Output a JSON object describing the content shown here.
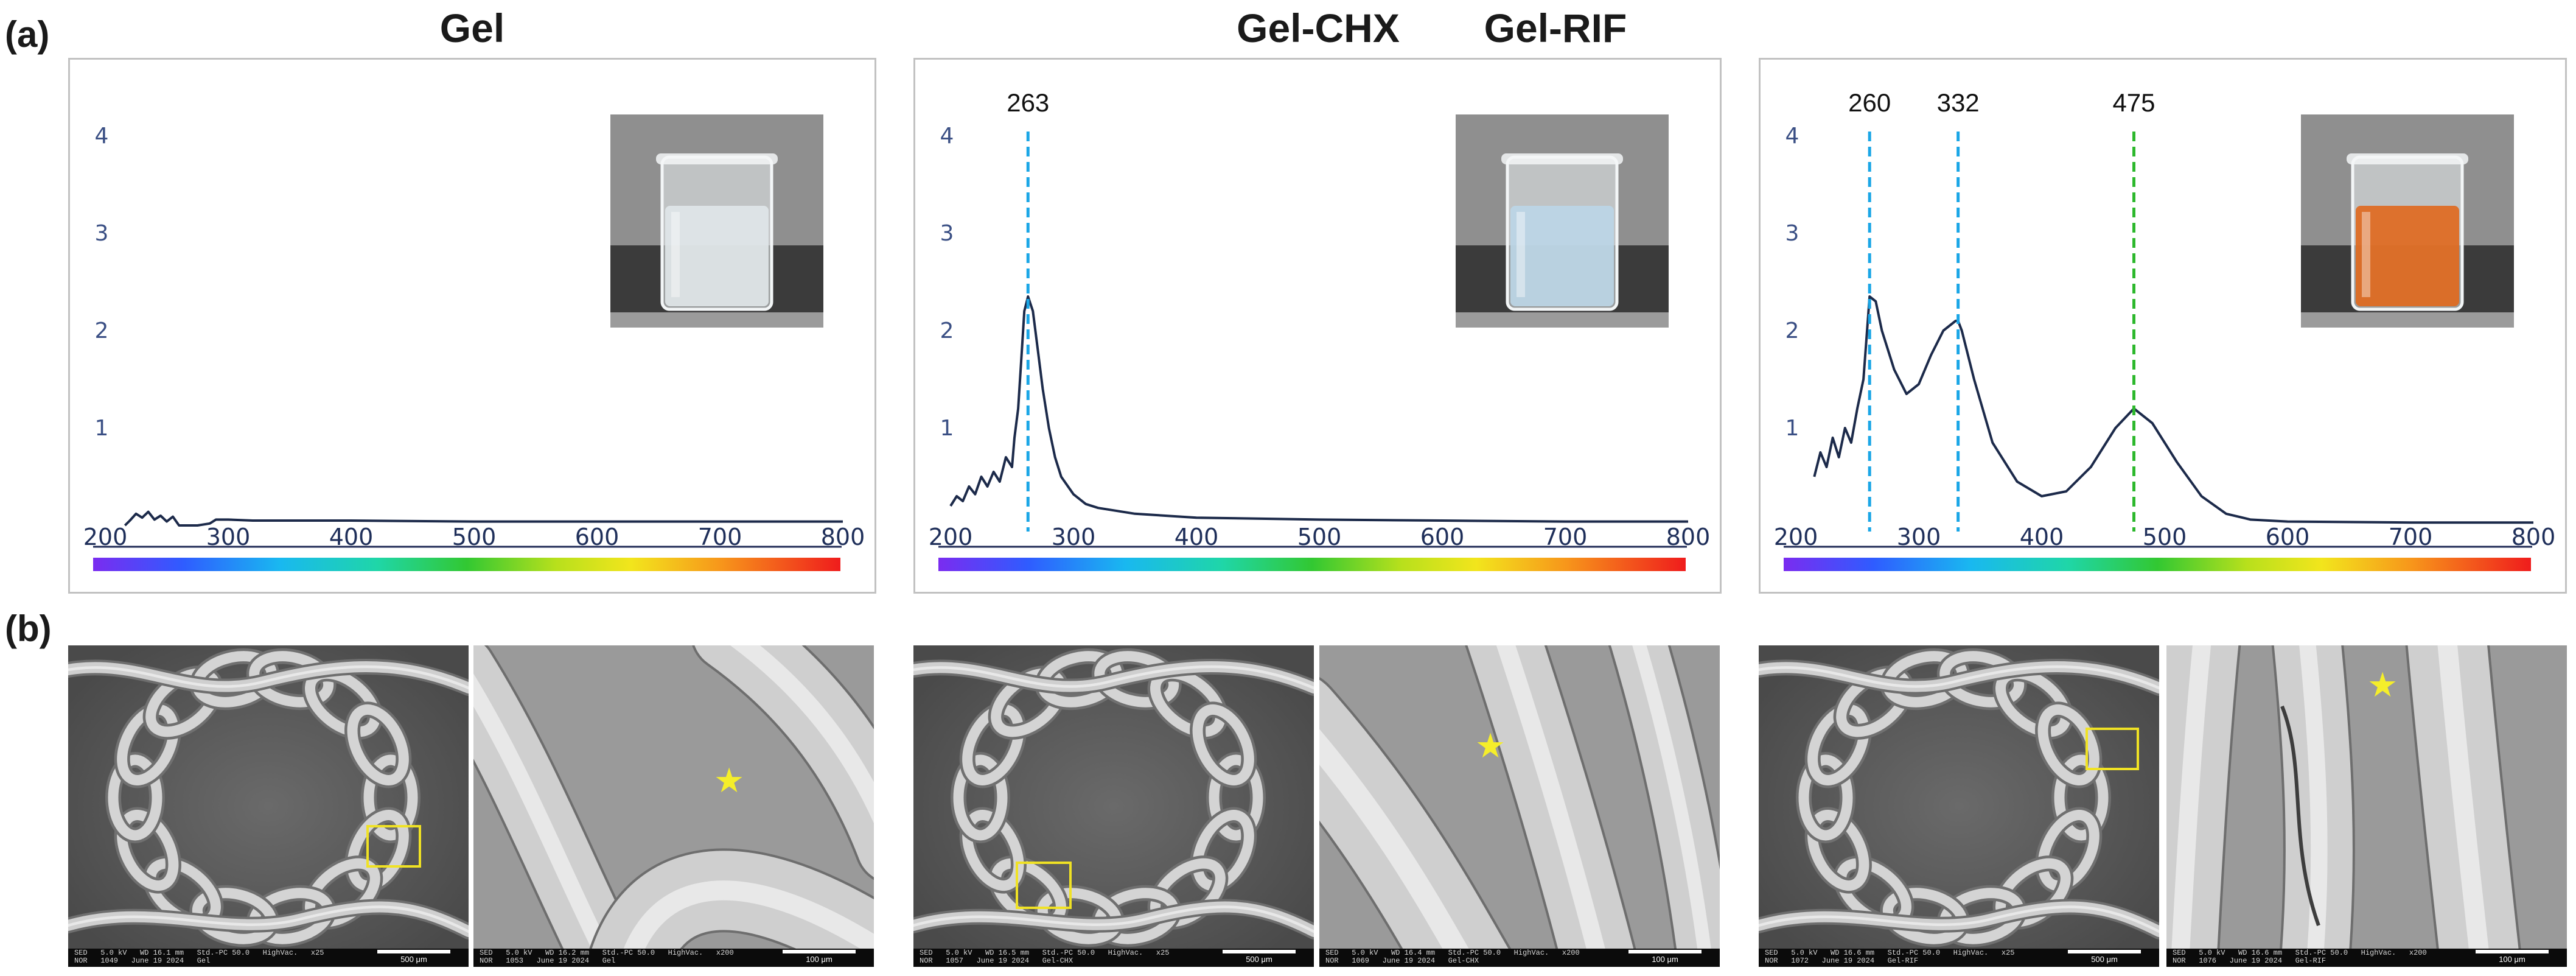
{
  "labels": {
    "a": "(a)",
    "b": "(b)"
  },
  "chart_data": [
    {
      "type": "line",
      "title": "Gel",
      "xlabel": "",
      "ylabel": "",
      "xlim": [
        200,
        800
      ],
      "ylim": [
        0,
        4.5
      ],
      "x_ticks": [
        200,
        300,
        400,
        500,
        600,
        700,
        800
      ],
      "y_ticks": [
        1,
        2,
        3,
        4
      ],
      "series": [
        {
          "x": [
            216,
            220,
            225,
            230,
            235,
            240,
            245,
            250,
            255,
            260,
            265,
            275,
            285,
            290,
            300,
            320,
            350,
            400,
            500,
            600,
            700,
            800
          ],
          "y": [
            0.0,
            0.05,
            0.12,
            0.08,
            0.14,
            0.06,
            0.1,
            0.04,
            0.09,
            0.0,
            0.0,
            0.0,
            0.02,
            0.06,
            0.06,
            0.05,
            0.05,
            0.05,
            0.04,
            0.04,
            0.04,
            0.04
          ]
        }
      ],
      "markers": [],
      "spectrum_bar": true,
      "inset_color": "#e6ecef",
      "liquid_color": "#dfe6e8"
    },
    {
      "type": "line",
      "title": "Gel-CHX",
      "xlabel": "",
      "ylabel": "",
      "xlim": [
        200,
        800
      ],
      "ylim": [
        0,
        4.5
      ],
      "x_ticks": [
        200,
        300,
        400,
        500,
        600,
        700,
        800
      ],
      "y_ticks": [
        1,
        2,
        3,
        4
      ],
      "series": [
        {
          "x": [
            200,
            205,
            210,
            215,
            220,
            225,
            230,
            235,
            240,
            245,
            250,
            252,
            255,
            258,
            260,
            263,
            267,
            270,
            275,
            280,
            285,
            290,
            300,
            310,
            320,
            350,
            400,
            500,
            600,
            700,
            800
          ],
          "y": [
            0.2,
            0.3,
            0.25,
            0.4,
            0.32,
            0.5,
            0.4,
            0.55,
            0.45,
            0.7,
            0.6,
            0.9,
            1.2,
            1.8,
            2.2,
            2.35,
            2.2,
            1.9,
            1.4,
            1.0,
            0.7,
            0.5,
            0.32,
            0.22,
            0.18,
            0.12,
            0.08,
            0.06,
            0.05,
            0.04,
            0.04
          ]
        }
      ],
      "markers": [
        {
          "x": 263,
          "label": "263",
          "color": "#1aa6e6"
        }
      ],
      "spectrum_bar": true,
      "inset_color": "#cfe2ee",
      "liquid_color": "#bcd6e6"
    },
    {
      "type": "line",
      "title": "Gel-RIF",
      "xlabel": "",
      "ylabel": "",
      "xlim": [
        200,
        800
      ],
      "ylim": [
        0,
        4.5
      ],
      "x_ticks": [
        200,
        300,
        400,
        500,
        600,
        700,
        800
      ],
      "y_ticks": [
        1,
        2,
        3,
        4
      ],
      "series": [
        {
          "x": [
            215,
            220,
            225,
            230,
            235,
            240,
            245,
            250,
            255,
            260,
            265,
            270,
            280,
            290,
            300,
            310,
            320,
            330,
            332,
            335,
            345,
            360,
            380,
            400,
            420,
            440,
            460,
            475,
            490,
            510,
            530,
            550,
            570,
            600,
            700,
            800
          ],
          "y": [
            0.5,
            0.75,
            0.6,
            0.9,
            0.7,
            1.0,
            0.85,
            1.2,
            1.5,
            2.35,
            2.3,
            2.0,
            1.6,
            1.35,
            1.45,
            1.75,
            2.0,
            2.1,
            2.1,
            2.0,
            1.5,
            0.85,
            0.45,
            0.3,
            0.35,
            0.6,
            1.0,
            1.2,
            1.05,
            0.65,
            0.3,
            0.12,
            0.06,
            0.04,
            0.03,
            0.03
          ]
        }
      ],
      "markers": [
        {
          "x": 260,
          "label": "260",
          "color": "#1aa6e6"
        },
        {
          "x": 332,
          "label": "332",
          "color": "#1aa6e6"
        },
        {
          "x": 475,
          "label": "475",
          "color": "#2db82d"
        }
      ],
      "spectrum_bar": true,
      "inset_color": "#d87a3a",
      "liquid_color": "#e06a20"
    }
  ],
  "sem_images": [
    {
      "group": "Gel",
      "view": "low-mag",
      "meta": "SED   5.0 kV   WD 16.1 mm   Std.-PC 50.0   HighVac.   x25\nNOR   1049   June 19 2024   Gel",
      "scale": "500 μm",
      "zoom_box": true,
      "star": false
    },
    {
      "group": "Gel",
      "view": "high-mag",
      "meta": "SED   5.0 kV   WD 16.2 mm   Std.-PC 50.0   HighVac.   x200\nNOR   1053   June 19 2024   Gel",
      "scale": "100 μm",
      "zoom_box": false,
      "star": true
    },
    {
      "group": "Gel-CHX",
      "view": "low-mag",
      "meta": "SED   5.0 kV   WD 16.5 mm   Std.-PC 50.0   HighVac.   x25\nNOR   1057   June 19 2024   Gel-CHX",
      "scale": "500 μm",
      "zoom_box": true,
      "star": false
    },
    {
      "group": "Gel-CHX",
      "view": "high-mag",
      "meta": "SED   5.0 kV   WD 16.4 mm   Std.-PC 50.0   HighVac.   x200\nNOR   1069   June 19 2024   Gel-CHX",
      "scale": "100 μm",
      "zoom_box": false,
      "star": true
    },
    {
      "group": "Gel-RIF",
      "view": "low-mag",
      "meta": "SED   5.0 kV   WD 16.6 mm   Std.-PC 50.0   HighVac.   x25\nNOR   1072   June 19 2024   Gel-RIF",
      "scale": "500 μm",
      "zoom_box": true,
      "star": false
    },
    {
      "group": "Gel-RIF",
      "view": "high-mag",
      "meta": "SED   5.0 kV   WD 16.6 mm   Std.-PC 50.0   HighVac.   x200\nNOR   1076   June 19 2024   Gel-RIF",
      "scale": "100 μm",
      "zoom_box": false,
      "star": true
    }
  ],
  "star_symbol": "★",
  "colors": {
    "curve": "#1c2a4a",
    "axis_text": "#3a4f84",
    "tick_text": "#1f2f5a",
    "zoom_box": "#f0e224",
    "star": "#f5ee2a"
  }
}
